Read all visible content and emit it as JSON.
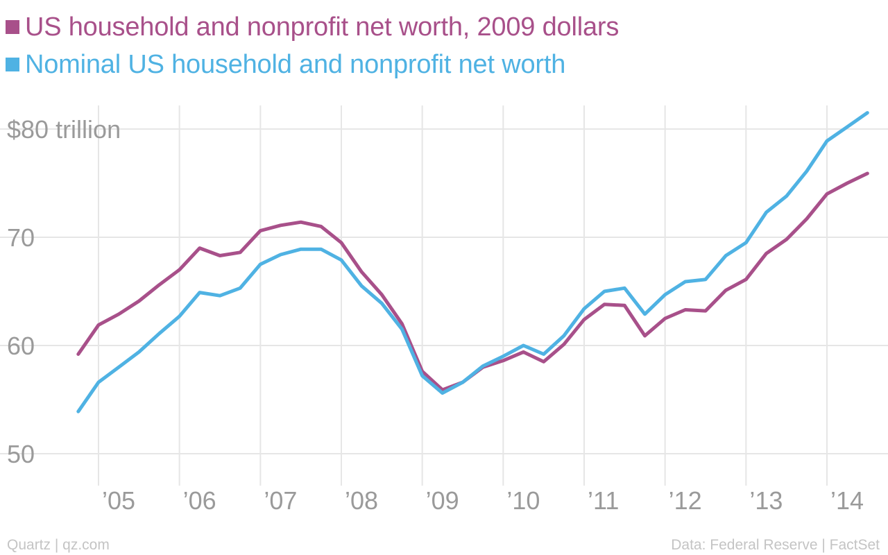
{
  "chart_data": {
    "type": "line",
    "xlim": [
      2004.6,
      2014.6
    ],
    "ylim": [
      48,
      83
    ],
    "yticks": [
      {
        "value": 80,
        "label": "$80 trillion"
      },
      {
        "value": 70,
        "label": "70"
      },
      {
        "value": 60,
        "label": "60"
      },
      {
        "value": 50,
        "label": "50"
      }
    ],
    "xticks": [
      {
        "value": 2005,
        "label": "’05"
      },
      {
        "value": 2006,
        "label": "’06"
      },
      {
        "value": 2007,
        "label": "’07"
      },
      {
        "value": 2008,
        "label": "’08"
      },
      {
        "value": 2009,
        "label": "’09"
      },
      {
        "value": 2010,
        "label": "’10"
      },
      {
        "value": 2011,
        "label": "’11"
      },
      {
        "value": 2012,
        "label": "’12"
      },
      {
        "value": 2013,
        "label": "’13"
      },
      {
        "value": 2014,
        "label": "’14"
      }
    ],
    "grid": true,
    "legend_position": "top-left",
    "series": [
      {
        "name": "US household and nonprofit net worth, 2009 dollars",
        "color": "#a8508a",
        "points": [
          [
            2004.75,
            59.2
          ],
          [
            2005.0,
            61.9
          ],
          [
            2005.25,
            62.9
          ],
          [
            2005.5,
            64.1
          ],
          [
            2005.75,
            65.6
          ],
          [
            2006.0,
            67.0
          ],
          [
            2006.25,
            69.0
          ],
          [
            2006.5,
            68.3
          ],
          [
            2006.75,
            68.6
          ],
          [
            2007.0,
            70.6
          ],
          [
            2007.25,
            71.1
          ],
          [
            2007.5,
            71.4
          ],
          [
            2007.75,
            71.0
          ],
          [
            2008.0,
            69.5
          ],
          [
            2008.25,
            66.8
          ],
          [
            2008.5,
            64.7
          ],
          [
            2008.75,
            62.0
          ],
          [
            2009.0,
            57.6
          ],
          [
            2009.25,
            55.9
          ],
          [
            2009.5,
            56.6
          ],
          [
            2009.75,
            58.0
          ],
          [
            2010.0,
            58.6
          ],
          [
            2010.25,
            59.4
          ],
          [
            2010.5,
            58.5
          ],
          [
            2010.75,
            60.1
          ],
          [
            2011.0,
            62.4
          ],
          [
            2011.25,
            63.8
          ],
          [
            2011.5,
            63.7
          ],
          [
            2011.75,
            60.9
          ],
          [
            2012.0,
            62.5
          ],
          [
            2012.25,
            63.3
          ],
          [
            2012.5,
            63.2
          ],
          [
            2012.75,
            65.1
          ],
          [
            2013.0,
            66.1
          ],
          [
            2013.25,
            68.5
          ],
          [
            2013.5,
            69.8
          ],
          [
            2013.75,
            71.7
          ],
          [
            2014.0,
            74.0
          ],
          [
            2014.25,
            75.0
          ],
          [
            2014.5,
            75.9
          ]
        ]
      },
      {
        "name": "Nominal US household and nonprofit net worth",
        "color": "#4fb2e3",
        "points": [
          [
            2004.75,
            53.9
          ],
          [
            2005.0,
            56.6
          ],
          [
            2005.25,
            58.0
          ],
          [
            2005.5,
            59.4
          ],
          [
            2005.75,
            61.1
          ],
          [
            2006.0,
            62.7
          ],
          [
            2006.25,
            64.9
          ],
          [
            2006.5,
            64.6
          ],
          [
            2006.75,
            65.3
          ],
          [
            2007.0,
            67.5
          ],
          [
            2007.25,
            68.4
          ],
          [
            2007.5,
            68.9
          ],
          [
            2007.75,
            68.9
          ],
          [
            2008.0,
            67.9
          ],
          [
            2008.25,
            65.5
          ],
          [
            2008.5,
            63.9
          ],
          [
            2008.75,
            61.5
          ],
          [
            2009.0,
            57.2
          ],
          [
            2009.25,
            55.6
          ],
          [
            2009.5,
            56.6
          ],
          [
            2009.75,
            58.1
          ],
          [
            2010.0,
            59.0
          ],
          [
            2010.25,
            60.0
          ],
          [
            2010.5,
            59.2
          ],
          [
            2010.75,
            60.9
          ],
          [
            2011.0,
            63.4
          ],
          [
            2011.25,
            65.0
          ],
          [
            2011.5,
            65.3
          ],
          [
            2011.75,
            62.9
          ],
          [
            2012.0,
            64.7
          ],
          [
            2012.25,
            65.9
          ],
          [
            2012.5,
            66.1
          ],
          [
            2012.75,
            68.3
          ],
          [
            2013.0,
            69.5
          ],
          [
            2013.25,
            72.3
          ],
          [
            2013.5,
            73.8
          ],
          [
            2013.75,
            76.1
          ],
          [
            2014.0,
            78.9
          ],
          [
            2014.25,
            80.2
          ],
          [
            2014.5,
            81.5
          ]
        ]
      }
    ]
  },
  "footer": {
    "source_left": "Quartz | qz.com",
    "source_right": "Data: Federal Reserve | FactSet"
  }
}
